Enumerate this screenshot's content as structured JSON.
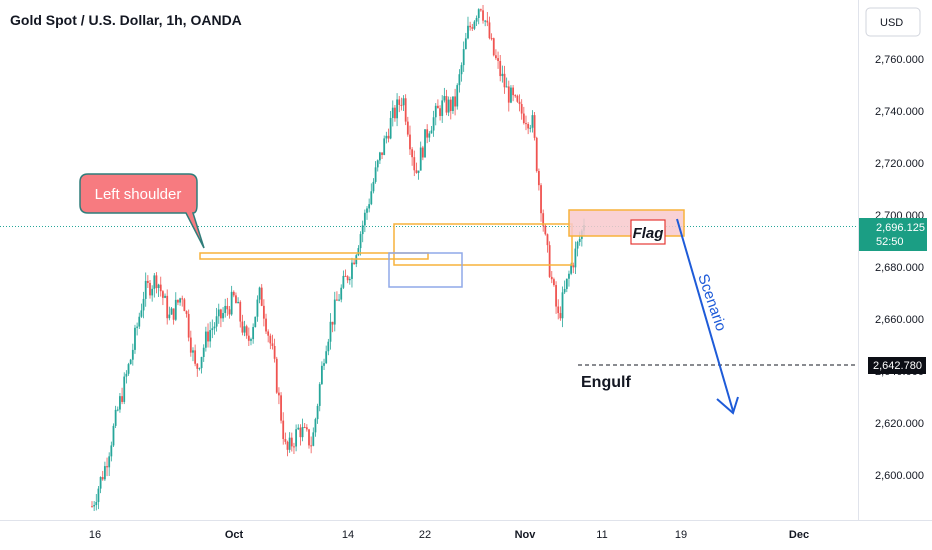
{
  "header": {
    "title": "Gold Spot / U.S. Dollar, 1h, OANDA",
    "currency": "USD"
  },
  "colors": {
    "up": "#26a69a",
    "down": "#ef5350",
    "orange": "#f7b23b",
    "blue_box": "#8fa8e8",
    "flag_fill": "#f8c9cc",
    "arrow": "#1e5bd8",
    "callout": "#f77b80",
    "callout_border": "#2f7d7a",
    "price_badge": "#1b9e84",
    "dark_badge": "#0c0e15"
  },
  "price_badge": {
    "price": "2,696.125",
    "countdown": "52:50"
  },
  "level_badge": "2,642.780",
  "annotations": {
    "left_shoulder": "Left shoulder",
    "flag": "Flag",
    "engulf": "Engulf",
    "scenario": "Scenario"
  },
  "chart_data": {
    "type": "candlestick",
    "title": "Gold Spot / U.S. Dollar, 1h, OANDA",
    "currency": "USD",
    "y_ticks": [
      "2,760.000",
      "2,740.000",
      "2,720.000",
      "2,700.000",
      "2,680.000",
      "2,660.000",
      "2,640.000",
      "2,620.000",
      "2,600.000"
    ],
    "x_ticks": [
      "16",
      "Oct",
      "14",
      "22",
      "Nov",
      "11",
      "19",
      "Dec"
    ],
    "last_price": 2696.125,
    "countdown": "52:50",
    "key_level": 2642.78,
    "ylim": [
      2585,
      2785
    ],
    "close_path": [
      [
        "16",
        2588
      ],
      [
        "18",
        2603
      ],
      [
        "20",
        2625
      ],
      [
        "23",
        2645
      ],
      [
        "26",
        2670
      ],
      [
        "27",
        2676
      ],
      [
        "28",
        2660
      ],
      [
        "29",
        2670
      ],
      [
        "30",
        2640
      ],
      [
        "Oct",
        2655
      ],
      [
        "02",
        2661
      ],
      [
        "04",
        2668
      ],
      [
        "06",
        2650
      ],
      [
        "07",
        2670
      ],
      [
        "09",
        2645
      ],
      [
        "10",
        2608
      ],
      [
        "11",
        2618
      ],
      [
        "12",
        2612
      ],
      [
        "14",
        2650
      ],
      [
        "15",
        2668
      ],
      [
        "17",
        2680
      ],
      [
        "18",
        2698
      ],
      [
        "19",
        2718
      ],
      [
        "21",
        2735
      ],
      [
        "22",
        2746
      ],
      [
        "23",
        2716
      ],
      [
        "24",
        2734
      ],
      [
        "25",
        2742
      ],
      [
        "28",
        2742
      ],
      [
        "29",
        2770
      ],
      [
        "30",
        2782
      ],
      [
        "31",
        2762
      ],
      [
        "Nov",
        2748
      ],
      [
        "04",
        2740
      ],
      [
        "05",
        2736
      ],
      [
        "06",
        2690
      ],
      [
        "07",
        2660
      ],
      [
        "08",
        2680
      ],
      [
        "09",
        2696.125
      ]
    ],
    "annotations": [
      {
        "label": "Left shoulder",
        "type": "callout"
      },
      {
        "label": "Flag",
        "type": "zone",
        "y_range": [
          2693,
          2702
        ]
      },
      {
        "label": "Engulf",
        "type": "level",
        "y": 2642.78
      },
      {
        "label": "Scenario",
        "type": "arrow"
      }
    ]
  }
}
